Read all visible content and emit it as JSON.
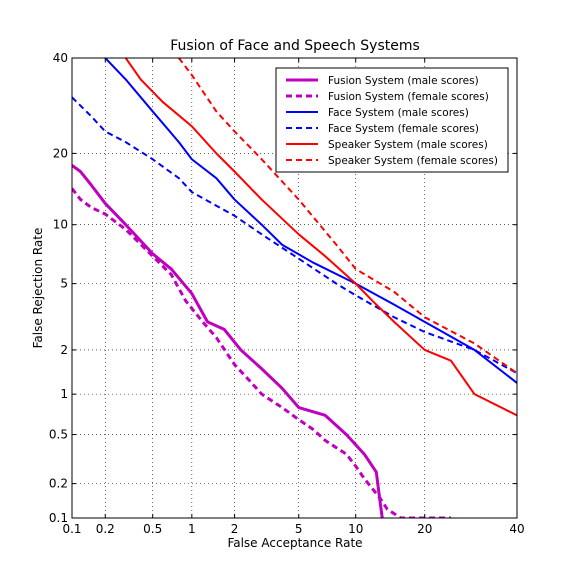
{
  "chart_data": {
    "type": "line",
    "title": "Fusion of Face and Speech Systems",
    "xlabel": "False Acceptance Rate",
    "ylabel": "False Rejection Rate",
    "x_scale": "normal-deviate",
    "y_scale": "normal-deviate",
    "xlim": [
      0.1,
      40
    ],
    "ylim": [
      0.1,
      40
    ],
    "xticks": [
      0.1,
      0.2,
      0.5,
      1,
      2,
      5,
      10,
      20,
      40
    ],
    "xtick_labels": [
      "0.1",
      "0.2",
      "0.5",
      "1",
      "2",
      "5",
      "10",
      "20",
      "40"
    ],
    "yticks": [
      0.1,
      0.2,
      0.5,
      1,
      2,
      5,
      10,
      20,
      40
    ],
    "ytick_labels": [
      "0.1",
      "0.2",
      "0.5",
      "1",
      "2",
      "5",
      "10",
      "20",
      "40"
    ],
    "grid": true,
    "legend_position": "top-right",
    "series": [
      {
        "name": "Fusion System (male scores)",
        "color": "#bf00bf",
        "style": "solid",
        "weight": "thick",
        "points": [
          [
            0.1,
            18
          ],
          [
            0.12,
            17
          ],
          [
            0.15,
            15
          ],
          [
            0.2,
            12.5
          ],
          [
            0.3,
            10
          ],
          [
            0.5,
            7.2
          ],
          [
            0.7,
            6
          ],
          [
            1,
            4.4
          ],
          [
            1.3,
            3
          ],
          [
            1.7,
            2.7
          ],
          [
            2.2,
            2
          ],
          [
            3,
            1.5
          ],
          [
            4,
            1.1
          ],
          [
            5,
            0.8
          ],
          [
            7,
            0.7
          ],
          [
            9,
            0.5
          ],
          [
            11,
            0.35
          ],
          [
            12.5,
            0.25
          ],
          [
            13,
            0.14
          ],
          [
            13.3,
            0.1
          ]
        ]
      },
      {
        "name": "Fusion System (female scores)",
        "color": "#bf00bf",
        "style": "dashed",
        "weight": "thick",
        "points": [
          [
            0.1,
            14.5
          ],
          [
            0.12,
            13
          ],
          [
            0.15,
            12
          ],
          [
            0.2,
            11.2
          ],
          [
            0.3,
            9.5
          ],
          [
            0.5,
            7
          ],
          [
            0.7,
            5.6
          ],
          [
            0.9,
            4
          ],
          [
            1.2,
            3
          ],
          [
            1.5,
            2.4
          ],
          [
            2,
            1.6
          ],
          [
            2.5,
            1.25
          ],
          [
            3,
            1.0
          ],
          [
            4,
            0.8
          ],
          [
            5,
            0.65
          ],
          [
            6,
            0.55
          ],
          [
            7,
            0.45
          ],
          [
            9,
            0.35
          ],
          [
            10,
            0.28
          ],
          [
            11,
            0.22
          ],
          [
            13,
            0.15
          ],
          [
            14,
            0.12
          ],
          [
            16,
            0.1
          ],
          [
            25,
            0.1
          ]
        ]
      },
      {
        "name": "Face System (male scores)",
        "color": "#0000ff",
        "style": "solid",
        "weight": "normal",
        "points": [
          [
            0.2,
            40
          ],
          [
            0.3,
            35
          ],
          [
            0.5,
            28
          ],
          [
            0.8,
            22
          ],
          [
            1,
            19
          ],
          [
            1.5,
            16
          ],
          [
            2,
            13
          ],
          [
            3,
            10
          ],
          [
            4,
            8
          ],
          [
            6,
            6.5
          ],
          [
            10,
            5
          ],
          [
            15,
            3.8
          ],
          [
            20,
            3
          ],
          [
            30,
            2
          ],
          [
            40,
            1.2
          ]
        ]
      },
      {
        "name": "Face System (female scores)",
        "color": "#0000ff",
        "style": "dashed",
        "weight": "normal",
        "points": [
          [
            0.1,
            31
          ],
          [
            0.15,
            27
          ],
          [
            0.2,
            24
          ],
          [
            0.3,
            22
          ],
          [
            0.5,
            19
          ],
          [
            0.8,
            16
          ],
          [
            1,
            14
          ],
          [
            2,
            11
          ],
          [
            3,
            9
          ],
          [
            5,
            6.8
          ],
          [
            8,
            5
          ],
          [
            10,
            4.3
          ],
          [
            15,
            3.2
          ],
          [
            20,
            2.6
          ],
          [
            30,
            2
          ],
          [
            40,
            1.4
          ]
        ]
      },
      {
        "name": "Speaker System (male scores)",
        "color": "#ff0000",
        "style": "solid",
        "weight": "normal",
        "points": [
          [
            0.3,
            40
          ],
          [
            0.4,
            35
          ],
          [
            0.6,
            30
          ],
          [
            1,
            25
          ],
          [
            1.5,
            20
          ],
          [
            2,
            17
          ],
          [
            3,
            13
          ],
          [
            5,
            9
          ],
          [
            7,
            7
          ],
          [
            10,
            5
          ],
          [
            12,
            4
          ],
          [
            15,
            3
          ],
          [
            20,
            2
          ],
          [
            25,
            1.7
          ],
          [
            30,
            1
          ],
          [
            40,
            0.7
          ]
        ]
      },
      {
        "name": "Speaker System (female scores)",
        "color": "#ff0000",
        "style": "dashed",
        "weight": "normal",
        "points": [
          [
            0.8,
            40
          ],
          [
            1,
            36
          ],
          [
            1.5,
            28
          ],
          [
            2,
            24
          ],
          [
            3,
            19
          ],
          [
            5,
            13
          ],
          [
            8,
            8
          ],
          [
            10,
            6
          ],
          [
            15,
            4.5
          ],
          [
            20,
            3.2
          ],
          [
            30,
            2.2
          ],
          [
            40,
            1.4
          ]
        ]
      }
    ]
  }
}
